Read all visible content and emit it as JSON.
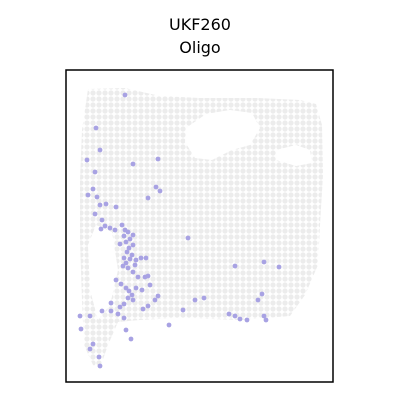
{
  "chart_data": {
    "type": "scatter",
    "title": "UKF260",
    "subtitle": "Oligo",
    "xlabel": "",
    "ylabel": "",
    "grid": false,
    "legend": "none",
    "colors": {
      "background_spot": "#ececec",
      "highlight": "#a8a2e3",
      "frame": "#000000"
    },
    "tissue_outline": [
      [
        88,
        89
      ],
      [
        125,
        88
      ],
      [
        160,
        96
      ],
      [
        200,
        98
      ],
      [
        258,
        98
      ],
      [
        300,
        100
      ],
      [
        316,
        104
      ],
      [
        322,
        125
      ],
      [
        323,
        175
      ],
      [
        320,
        225
      ],
      [
        318,
        265
      ],
      [
        305,
        295
      ],
      [
        290,
        316
      ],
      [
        240,
        320
      ],
      [
        180,
        318
      ],
      [
        140,
        320
      ],
      [
        118,
        322
      ],
      [
        108,
        345
      ],
      [
        100,
        368
      ],
      [
        93,
        365
      ],
      [
        84,
        345
      ],
      [
        82,
        300
      ],
      [
        80,
        240
      ],
      [
        80,
        180
      ],
      [
        82,
        130
      ]
    ],
    "background_holes": [
      [
        [
          186,
          128
        ],
        [
          206,
          114
        ],
        [
          230,
          110
        ],
        [
          252,
          113
        ],
        [
          260,
          128
        ],
        [
          250,
          145
        ],
        [
          232,
          150
        ],
        [
          212,
          160
        ],
        [
          195,
          158
        ],
        [
          185,
          142
        ]
      ],
      [
        [
          276,
          150
        ],
        [
          296,
          145
        ],
        [
          310,
          150
        ],
        [
          312,
          163
        ],
        [
          296,
          166
        ],
        [
          276,
          160
        ]
      ],
      [
        [
          96,
          225
        ],
        [
          112,
          232
        ],
        [
          118,
          270
        ],
        [
          110,
          305
        ],
        [
          98,
          320
        ],
        [
          90,
          290
        ],
        [
          88,
          245
        ]
      ]
    ],
    "points": [
      [
        125,
        95
      ],
      [
        96,
        128
      ],
      [
        100,
        150
      ],
      [
        87,
        160
      ],
      [
        95,
        172
      ],
      [
        133,
        164
      ],
      [
        158,
        159
      ],
      [
        93,
        189
      ],
      [
        88,
        195
      ],
      [
        97,
        197
      ],
      [
        160,
        191
      ],
      [
        156,
        187
      ],
      [
        148,
        198
      ],
      [
        100,
        205
      ],
      [
        106,
        204
      ],
      [
        95,
        214
      ],
      [
        102,
        220
      ],
      [
        116,
        207
      ],
      [
        122,
        225
      ],
      [
        101,
        229
      ],
      [
        105,
        226
      ],
      [
        110,
        228
      ],
      [
        115,
        230
      ],
      [
        125,
        230
      ],
      [
        128,
        232
      ],
      [
        133,
        235
      ],
      [
        124,
        236
      ],
      [
        130,
        239
      ],
      [
        126,
        242
      ],
      [
        120,
        244
      ],
      [
        133,
        245
      ],
      [
        129,
        248
      ],
      [
        127,
        252
      ],
      [
        132,
        255
      ],
      [
        124,
        258
      ],
      [
        126,
        263
      ],
      [
        130,
        259
      ],
      [
        136,
        260
      ],
      [
        141,
        258
      ],
      [
        146,
        258
      ],
      [
        123,
        266
      ],
      [
        128,
        268
      ],
      [
        135,
        265
      ],
      [
        188,
        238
      ],
      [
        133,
        272
      ],
      [
        138,
        277
      ],
      [
        145,
        277
      ],
      [
        148,
        276
      ],
      [
        116,
        280
      ],
      [
        121,
        284
      ],
      [
        126,
        288
      ],
      [
        129,
        291
      ],
      [
        132,
        295
      ],
      [
        136,
        288
      ],
      [
        142,
        290
      ],
      [
        150,
        285
      ],
      [
        158,
        296
      ],
      [
        155,
        300
      ],
      [
        143,
        309
      ],
      [
        148,
        306
      ],
      [
        133,
        300
      ],
      [
        128,
        298
      ],
      [
        124,
        304
      ],
      [
        120,
        307
      ],
      [
        111,
        303
      ],
      [
        102,
        311
      ],
      [
        111,
        311
      ],
      [
        118,
        314
      ],
      [
        124,
        318
      ],
      [
        80,
        316
      ],
      [
        90,
        316
      ],
      [
        81,
        329
      ],
      [
        126,
        330
      ],
      [
        131,
        339
      ],
      [
        169,
        325
      ],
      [
        183,
        310
      ],
      [
        195,
        300
      ],
      [
        204,
        298
      ],
      [
        229,
        314
      ],
      [
        235,
        316
      ],
      [
        240,
        319
      ],
      [
        247,
        320
      ],
      [
        258,
        300
      ],
      [
        262,
        294
      ],
      [
        264,
        262
      ],
      [
        266,
        320
      ],
      [
        264,
        316
      ],
      [
        279,
        267
      ],
      [
        235,
        266
      ],
      [
        93,
        344
      ],
      [
        90,
        349
      ],
      [
        99,
        357
      ],
      [
        100,
        366
      ]
    ]
  }
}
